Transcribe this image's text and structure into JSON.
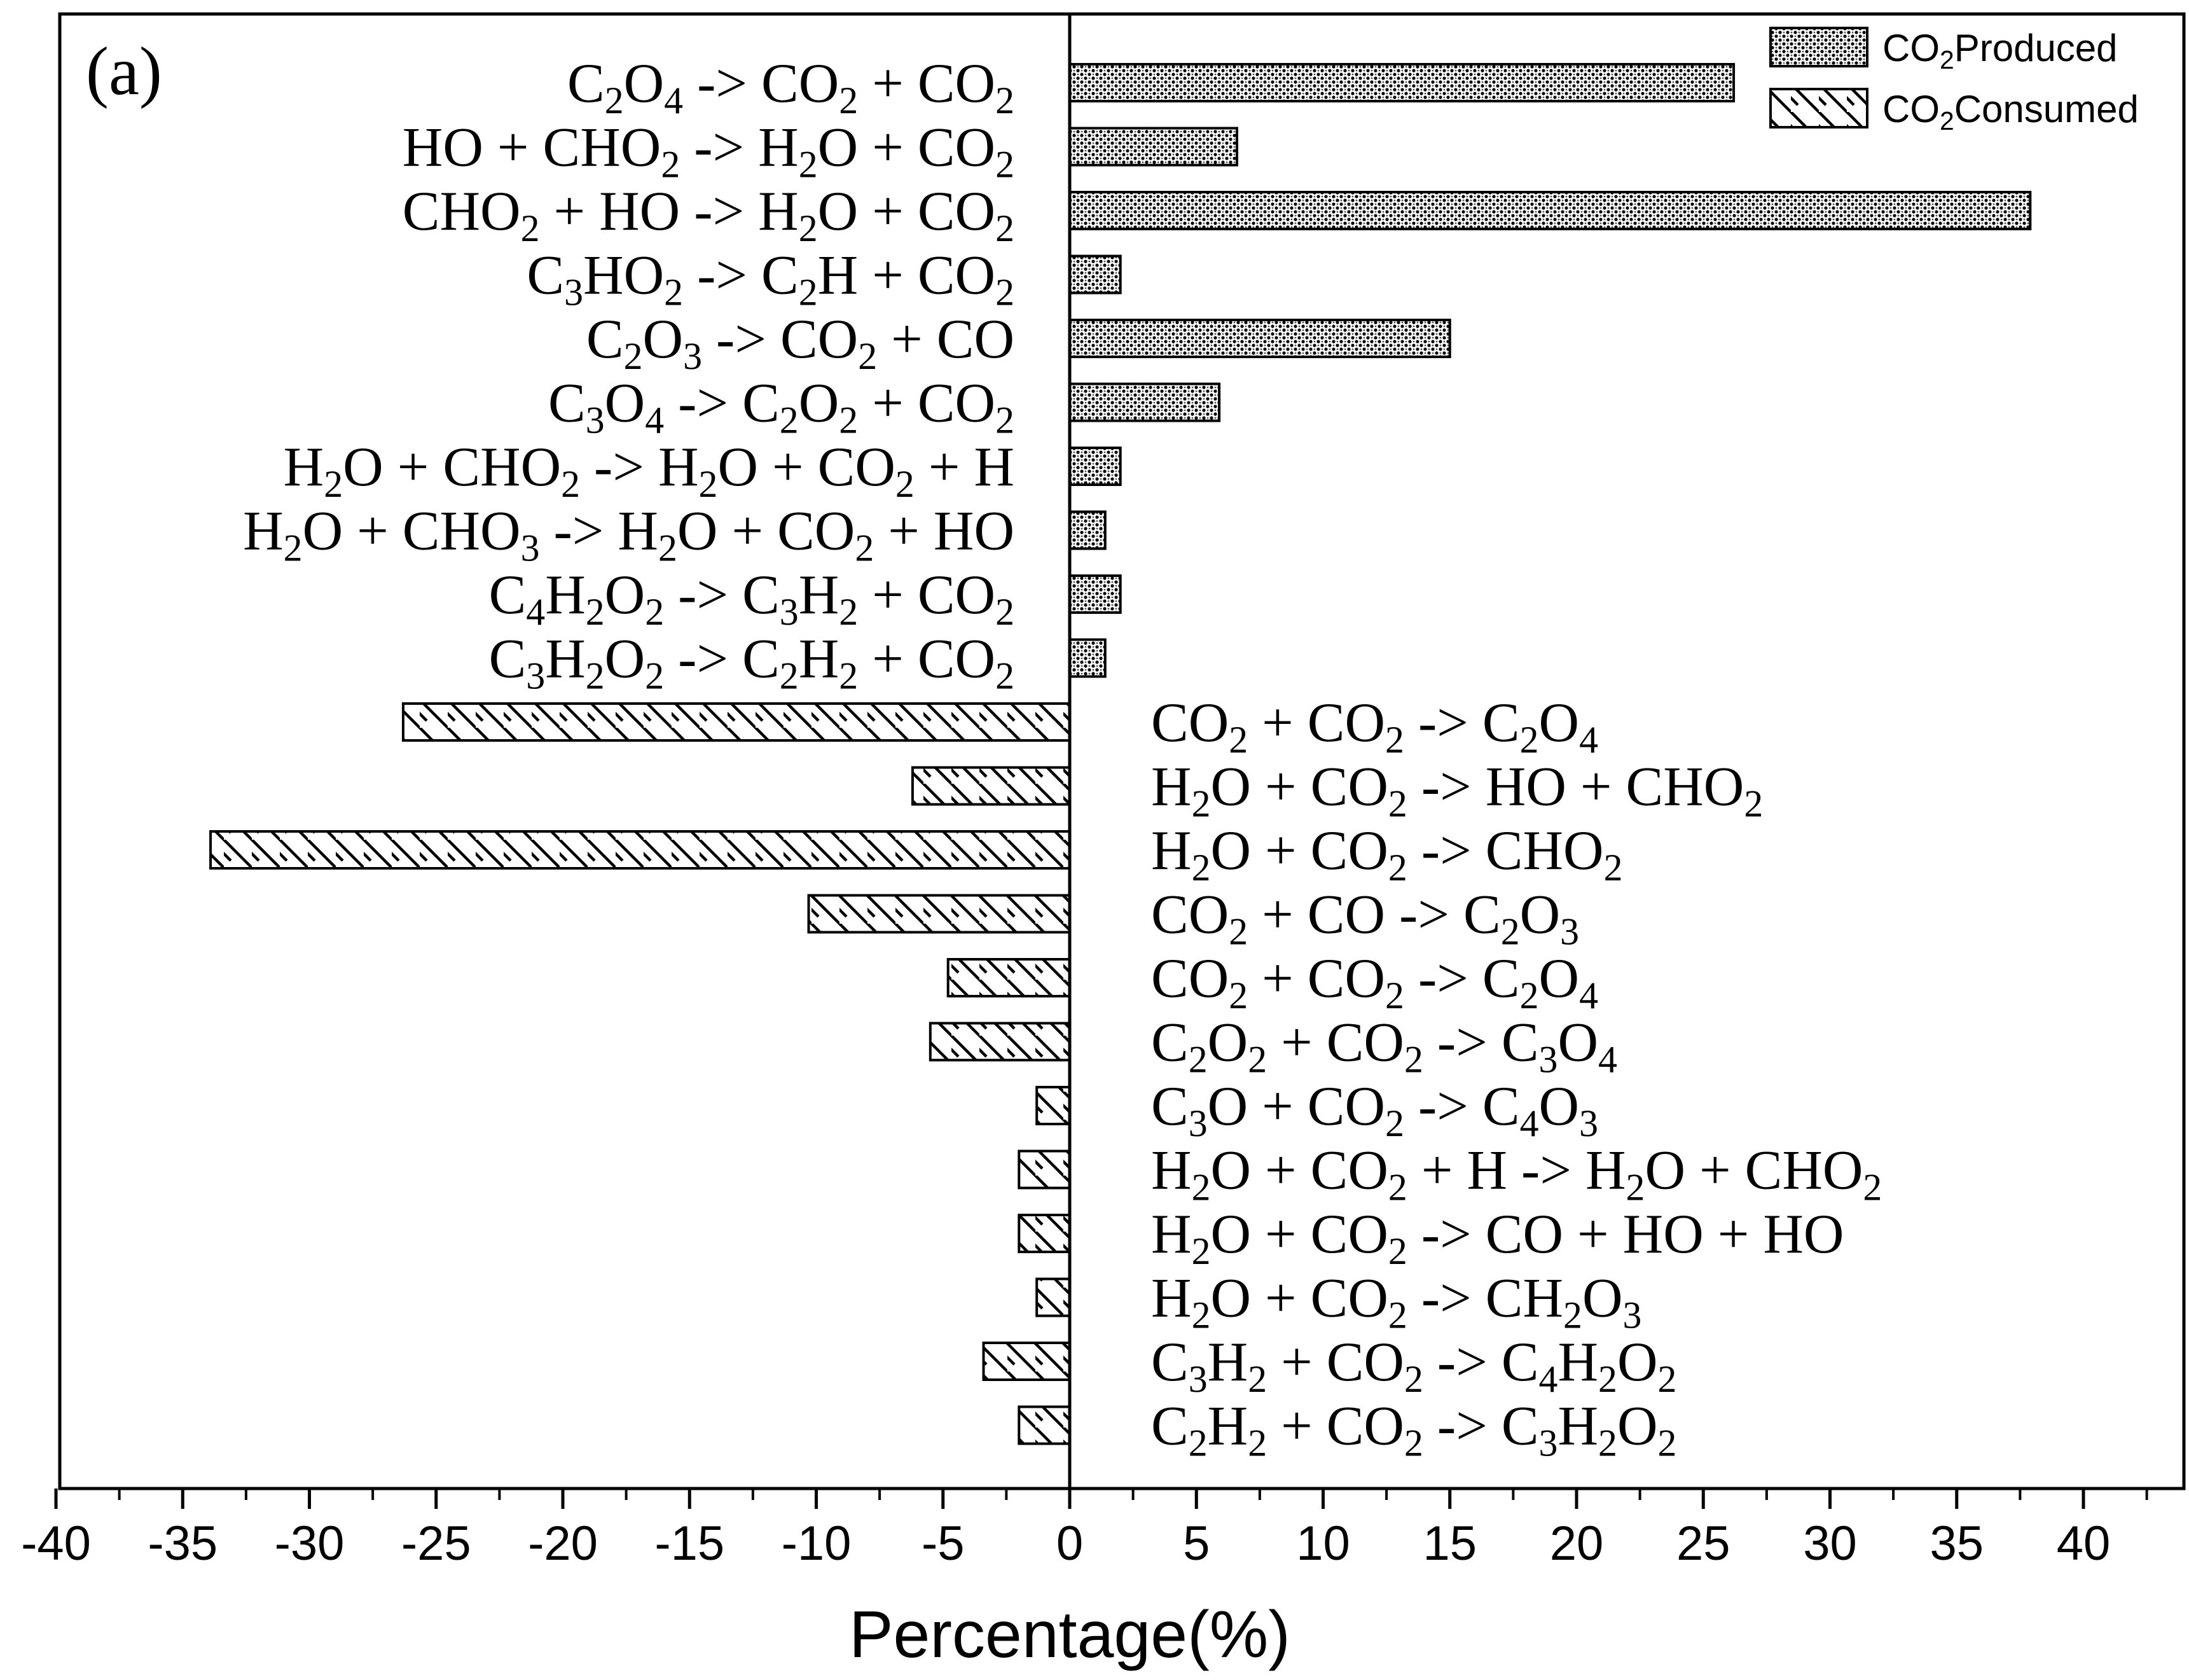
{
  "chart_data": {
    "type": "bar",
    "orientation": "horizontal",
    "panel_label": "(a)",
    "xlabel": "Percentage(%)",
    "xlim": [
      -40,
      44
    ],
    "x_major_ticks": [
      -40,
      -35,
      -30,
      -25,
      -20,
      -15,
      -10,
      -5,
      0,
      5,
      10,
      15,
      20,
      25,
      30,
      35,
      40
    ],
    "x_tick_labels": [
      "-40",
      "-35",
      "-30",
      "-25",
      "-20",
      "-15",
      "-10",
      "-5",
      "0",
      "5",
      "10",
      "15",
      "20",
      "25",
      "30",
      "35",
      "40"
    ],
    "grid": false,
    "legend_position": "top-right",
    "series": [
      {
        "name": "CO2Produced",
        "legend_parts": [
          {
            "t": "CO"
          },
          {
            "t": "2",
            "sub": true
          },
          {
            "t": "Produced"
          }
        ],
        "pattern": "crosshatch-dots",
        "bars": [
          {
            "value": 26.2,
            "label": [
              {
                "t": "C"
              },
              {
                "t": "2",
                "sub": true
              },
              {
                "t": "O"
              },
              {
                "t": "4",
                "sub": true
              },
              {
                "t": " -> CO"
              },
              {
                "t": "2",
                "sub": true
              },
              {
                "t": " + CO"
              },
              {
                "t": "2",
                "sub": true
              }
            ]
          },
          {
            "value": 6.6,
            "label": [
              {
                "t": "HO + CHO"
              },
              {
                "t": "2",
                "sub": true
              },
              {
                "t": " -> H"
              },
              {
                "t": "2",
                "sub": true
              },
              {
                "t": "O + CO"
              },
              {
                "t": "2",
                "sub": true
              }
            ]
          },
          {
            "value": 37.9,
            "label": [
              {
                "t": "CHO"
              },
              {
                "t": "2",
                "sub": true
              },
              {
                "t": " + HO -> H"
              },
              {
                "t": "2",
                "sub": true
              },
              {
                "t": "O + CO"
              },
              {
                "t": "2",
                "sub": true
              }
            ]
          },
          {
            "value": 2.0,
            "label": [
              {
                "t": "C"
              },
              {
                "t": "3",
                "sub": true
              },
              {
                "t": "HO"
              },
              {
                "t": "2",
                "sub": true
              },
              {
                "t": " -> C"
              },
              {
                "t": "2",
                "sub": true
              },
              {
                "t": "H + CO"
              },
              {
                "t": "2",
                "sub": true
              }
            ]
          },
          {
            "value": 15.0,
            "label": [
              {
                "t": "C"
              },
              {
                "t": "2",
                "sub": true
              },
              {
                "t": "O"
              },
              {
                "t": "3",
                "sub": true
              },
              {
                "t": " -> CO"
              },
              {
                "t": "2",
                "sub": true
              },
              {
                "t": " + CO"
              }
            ]
          },
          {
            "value": 5.9,
            "label": [
              {
                "t": "C"
              },
              {
                "t": "3",
                "sub": true
              },
              {
                "t": "O"
              },
              {
                "t": "4",
                "sub": true
              },
              {
                "t": " -> C"
              },
              {
                "t": "2",
                "sub": true
              },
              {
                "t": "O"
              },
              {
                "t": "2",
                "sub": true
              },
              {
                "t": " + CO"
              },
              {
                "t": "2",
                "sub": true
              }
            ]
          },
          {
            "value": 2.0,
            "label": [
              {
                "t": "H"
              },
              {
                "t": "2",
                "sub": true
              },
              {
                "t": "O + CHO"
              },
              {
                "t": "2",
                "sub": true
              },
              {
                "t": " -> H"
              },
              {
                "t": "2",
                "sub": true
              },
              {
                "t": "O + CO"
              },
              {
                "t": "2",
                "sub": true
              },
              {
                "t": " + H"
              }
            ]
          },
          {
            "value": 1.4,
            "label": [
              {
                "t": "H"
              },
              {
                "t": "2",
                "sub": true
              },
              {
                "t": "O + CHO"
              },
              {
                "t": "3",
                "sub": true
              },
              {
                "t": " -> H"
              },
              {
                "t": "2",
                "sub": true
              },
              {
                "t": "O + CO"
              },
              {
                "t": "2",
                "sub": true
              },
              {
                "t": " + HO"
              }
            ]
          },
          {
            "value": 2.0,
            "label": [
              {
                "t": "C"
              },
              {
                "t": "4",
                "sub": true
              },
              {
                "t": "H"
              },
              {
                "t": "2",
                "sub": true
              },
              {
                "t": "O"
              },
              {
                "t": "2",
                "sub": true
              },
              {
                "t": " -> C"
              },
              {
                "t": "3",
                "sub": true
              },
              {
                "t": "H"
              },
              {
                "t": "2",
                "sub": true
              },
              {
                "t": " + CO"
              },
              {
                "t": "2",
                "sub": true
              }
            ]
          },
          {
            "value": 1.4,
            "label": [
              {
                "t": "C"
              },
              {
                "t": "3",
                "sub": true
              },
              {
                "t": "H"
              },
              {
                "t": "2",
                "sub": true
              },
              {
                "t": "O"
              },
              {
                "t": "2",
                "sub": true
              },
              {
                "t": " -> C"
              },
              {
                "t": "2",
                "sub": true
              },
              {
                "t": "H"
              },
              {
                "t": "2",
                "sub": true
              },
              {
                "t": " + CO"
              },
              {
                "t": "2",
                "sub": true
              }
            ]
          }
        ]
      },
      {
        "name": "CO2Consumed",
        "legend_parts": [
          {
            "t": "CO"
          },
          {
            "t": "2",
            "sub": true
          },
          {
            "t": "Consumed"
          }
        ],
        "pattern": "diagonal-hatch",
        "bars": [
          {
            "value": -26.3,
            "label": [
              {
                "t": "CO"
              },
              {
                "t": "2",
                "sub": true
              },
              {
                "t": " + CO"
              },
              {
                "t": "2",
                "sub": true
              },
              {
                "t": " -> C"
              },
              {
                "t": "2",
                "sub": true
              },
              {
                "t": "O"
              },
              {
                "t": "4",
                "sub": true
              }
            ]
          },
          {
            "value": -6.2,
            "label": [
              {
                "t": "H"
              },
              {
                "t": "2",
                "sub": true
              },
              {
                "t": "O + CO"
              },
              {
                "t": "2",
                "sub": true
              },
              {
                "t": " -> HO + CHO"
              },
              {
                "t": "2",
                "sub": true
              }
            ]
          },
          {
            "value": -33.9,
            "label": [
              {
                "t": "H"
              },
              {
                "t": "2",
                "sub": true
              },
              {
                "t": "O + CO"
              },
              {
                "t": "2",
                "sub": true
              },
              {
                "t": " -> CHO"
              },
              {
                "t": "2",
                "sub": true
              }
            ]
          },
          {
            "value": -10.3,
            "label": [
              {
                "t": "CO"
              },
              {
                "t": "2",
                "sub": true
              },
              {
                "t": " + CO -> C"
              },
              {
                "t": "2",
                "sub": true
              },
              {
                "t": "O"
              },
              {
                "t": "3",
                "sub": true
              }
            ]
          },
          {
            "value": -4.8,
            "label": [
              {
                "t": "CO"
              },
              {
                "t": "2",
                "sub": true
              },
              {
                "t": " + CO"
              },
              {
                "t": "2",
                "sub": true
              },
              {
                "t": " -> C"
              },
              {
                "t": "2",
                "sub": true
              },
              {
                "t": "O"
              },
              {
                "t": "4",
                "sub": true
              }
            ]
          },
          {
            "value": -5.5,
            "label": [
              {
                "t": "C"
              },
              {
                "t": "2",
                "sub": true
              },
              {
                "t": "O"
              },
              {
                "t": "2",
                "sub": true
              },
              {
                "t": " + CO"
              },
              {
                "t": "2",
                "sub": true
              },
              {
                "t": " -> C"
              },
              {
                "t": "3",
                "sub": true
              },
              {
                "t": "O"
              },
              {
                "t": "4",
                "sub": true
              }
            ]
          },
          {
            "value": -1.3,
            "label": [
              {
                "t": "C"
              },
              {
                "t": "3",
                "sub": true
              },
              {
                "t": "O + CO"
              },
              {
                "t": "2",
                "sub": true
              },
              {
                "t": " -> C"
              },
              {
                "t": "4",
                "sub": true
              },
              {
                "t": "O"
              },
              {
                "t": "3",
                "sub": true
              }
            ]
          },
          {
            "value": -2.0,
            "label": [
              {
                "t": "H"
              },
              {
                "t": "2",
                "sub": true
              },
              {
                "t": "O + CO"
              },
              {
                "t": "2",
                "sub": true
              },
              {
                "t": " + H -> H"
              },
              {
                "t": "2",
                "sub": true
              },
              {
                "t": "O + CHO"
              },
              {
                "t": "2",
                "sub": true
              }
            ]
          },
          {
            "value": -2.0,
            "label": [
              {
                "t": "H"
              },
              {
                "t": "2",
                "sub": true
              },
              {
                "t": "O + CO"
              },
              {
                "t": "2",
                "sub": true
              },
              {
                "t": " -> CO + HO + HO"
              }
            ]
          },
          {
            "value": -1.3,
            "label": [
              {
                "t": "H"
              },
              {
                "t": "2",
                "sub": true
              },
              {
                "t": "O + CO"
              },
              {
                "t": "2",
                "sub": true
              },
              {
                "t": " -> CH"
              },
              {
                "t": "2",
                "sub": true
              },
              {
                "t": "O"
              },
              {
                "t": "3",
                "sub": true
              }
            ]
          },
          {
            "value": -3.4,
            "label": [
              {
                "t": "C"
              },
              {
                "t": "3",
                "sub": true
              },
              {
                "t": "H"
              },
              {
                "t": "2",
                "sub": true
              },
              {
                "t": " + CO"
              },
              {
                "t": "2",
                "sub": true
              },
              {
                "t": " -> C"
              },
              {
                "t": "4",
                "sub": true
              },
              {
                "t": "H"
              },
              {
                "t": "2",
                "sub": true
              },
              {
                "t": "O"
              },
              {
                "t": "2",
                "sub": true
              }
            ]
          },
          {
            "value": -2.0,
            "label": [
              {
                "t": "C"
              },
              {
                "t": "2",
                "sub": true
              },
              {
                "t": "H"
              },
              {
                "t": "2",
                "sub": true
              },
              {
                "t": " + CO"
              },
              {
                "t": "2",
                "sub": true
              },
              {
                "t": " -> C"
              },
              {
                "t": "3",
                "sub": true
              },
              {
                "t": "H"
              },
              {
                "t": "2",
                "sub": true
              },
              {
                "t": "O"
              },
              {
                "t": "2",
                "sub": true
              }
            ]
          }
        ]
      }
    ]
  }
}
